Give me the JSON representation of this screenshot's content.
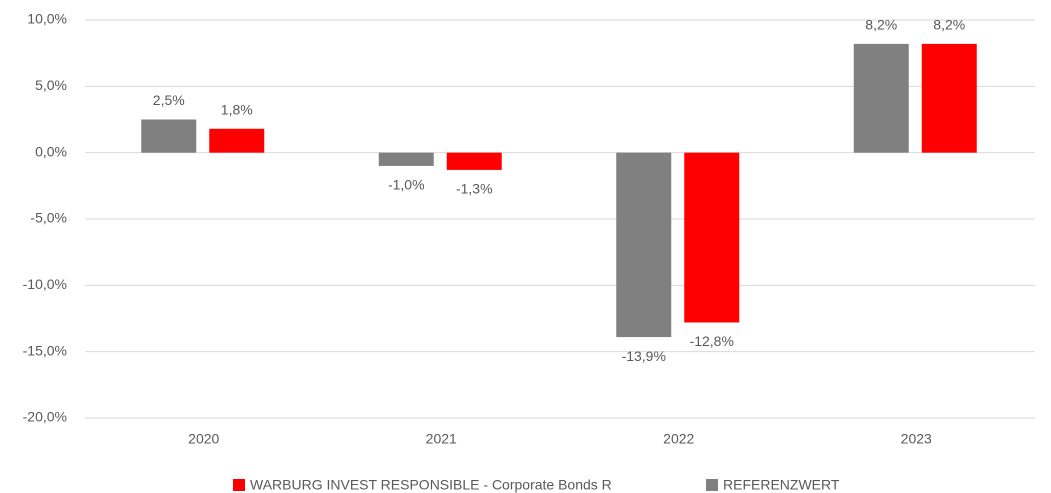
{
  "chart_data": {
    "type": "bar",
    "categories": [
      "2020",
      "2021",
      "2022",
      "2023"
    ],
    "series": [
      {
        "name": "WARBURG INVEST RESPONSIBLE - Corporate Bonds R",
        "color": "#ff0000",
        "values": [
          1.8,
          -1.3,
          -12.8,
          8.2
        ],
        "value_labels": [
          "1,8%",
          "-1,3%",
          "-12,8%",
          "8,2%"
        ]
      },
      {
        "name": "REFERENZWERT",
        "color": "#808080",
        "values": [
          2.5,
          -1.0,
          -13.9,
          8.2
        ],
        "value_labels": [
          "2,5%",
          "-1,0%",
          "-13,9%",
          "8,2%"
        ]
      }
    ],
    "ylim": [
      -20,
      10
    ],
    "yticks": [
      {
        "value": -20,
        "label": "-20,0%"
      },
      {
        "value": -15,
        "label": "-15,0%"
      },
      {
        "value": -10,
        "label": "-10,0%"
      },
      {
        "value": -5,
        "label": "-5,0%"
      },
      {
        "value": 0,
        "label": "0,0%"
      },
      {
        "value": 5,
        "label": "5,0%"
      },
      {
        "value": 10,
        "label": "10,0%"
      }
    ],
    "grid": true,
    "legend": "bottom"
  }
}
